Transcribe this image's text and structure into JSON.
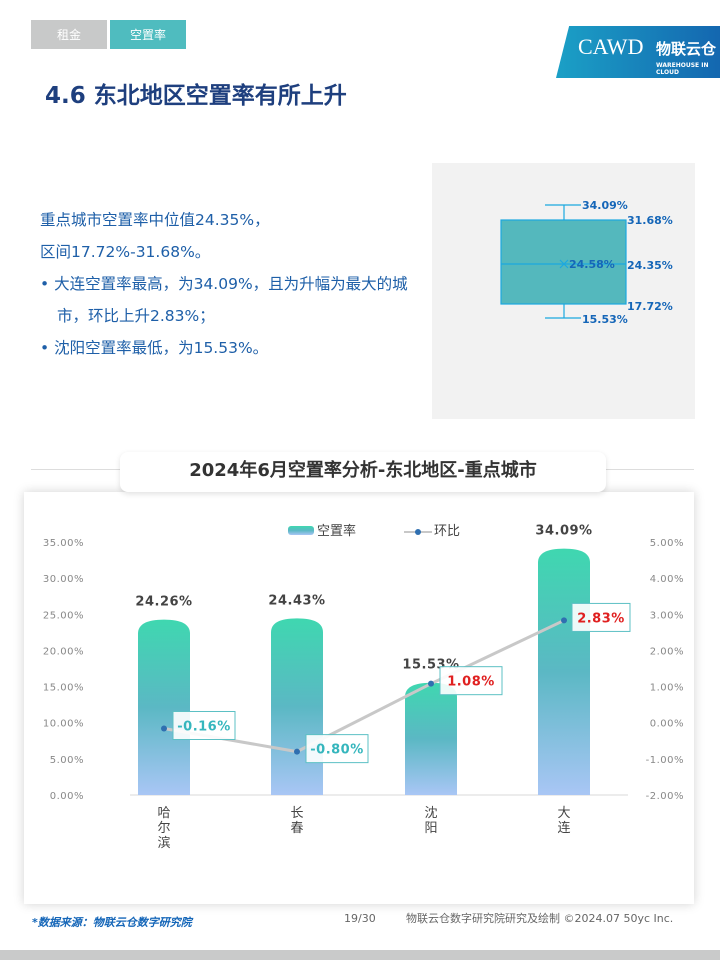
{
  "tabs": [
    {
      "label": "租金",
      "active": false
    },
    {
      "label": "空置率",
      "active": true
    }
  ],
  "logo": {
    "text": "CAWD",
    "brand": "物联云仓",
    "brand_en": "WAREHOUSE IN CLOUD"
  },
  "page_title": "4.6 东北地区空置率有所上升",
  "summary": {
    "line1": "重点城市空置率中位值24.35%，",
    "line2": "区间17.72%-31.68%。",
    "bullets": [
      "大连空置率最高，为34.09%，且为升幅为最大的城市，环比上升2.83%；",
      "沈阳空置率最低，为15.53%。"
    ]
  },
  "boxplot": {
    "max": "34.09%",
    "q3": "31.68%",
    "mean": "24.58%",
    "median": "24.35%",
    "q1": "17.72%",
    "min": "15.53%",
    "color": "#54b8bd",
    "line_color": "#1ba8e0",
    "label_color": "#1566b8"
  },
  "chart_title": "2024年6月空置率分析-东北地区-重点城市",
  "chart_data": {
    "type": "bar+line",
    "categories": [
      "哈尔滨",
      "长春",
      "沈阳",
      "大连"
    ],
    "series": [
      {
        "name": "空置率",
        "type": "bar",
        "axis": "left",
        "values": [
          24.26,
          24.43,
          15.53,
          34.09
        ],
        "labels": [
          "24.26%",
          "24.43%",
          "15.53%",
          "34.09%"
        ]
      },
      {
        "name": "环比",
        "type": "line",
        "axis": "right",
        "values": [
          -0.16,
          -0.8,
          1.08,
          2.83
        ],
        "labels": [
          "-0.16%",
          "-0.80%",
          "1.08%",
          "2.83%"
        ]
      }
    ],
    "left_axis": {
      "range": [
        0,
        35
      ],
      "ticks": [
        "0.00%",
        "5.00%",
        "10.00%",
        "15.00%",
        "20.00%",
        "25.00%",
        "30.00%",
        "35.00%"
      ]
    },
    "right_axis": {
      "range": [
        -2,
        5
      ],
      "ticks": [
        "-2.00%",
        "-1.00%",
        "0.00%",
        "1.00%",
        "2.00%",
        "3.00%",
        "4.00%",
        "5.00%"
      ]
    },
    "legend": "top-center",
    "grid": false,
    "colors": {
      "bar_top": "#3fd7b0",
      "bar_mid": "#5bb8c4",
      "bar_bottom": "#a9c6f5",
      "line": "#c8c8c8",
      "point": "#2f6fb0",
      "neg_label": "#35b6bd",
      "pos_label": "#e02020"
    }
  },
  "footer": {
    "source": "*数据来源：物联云仓数字研究院",
    "page": "19/30",
    "credit": "物联云仓数字研究院研究及绘制   ©2024.07 50yc Inc."
  }
}
